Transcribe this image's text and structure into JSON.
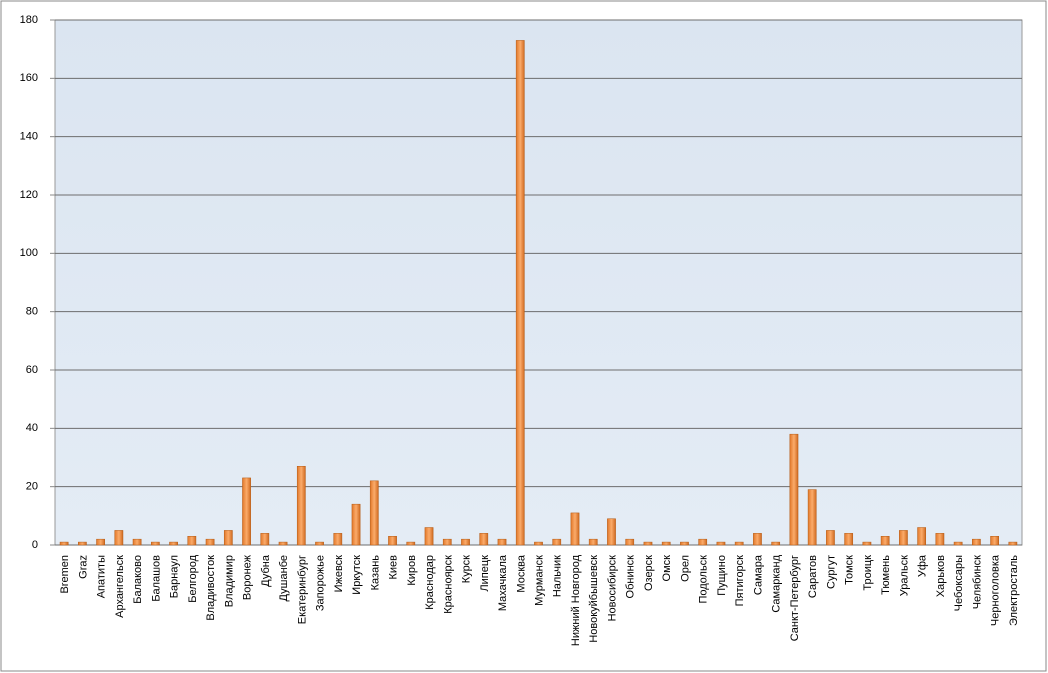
{
  "chart_data": {
    "type": "bar",
    "categories": [
      "Bremen",
      "Graz",
      "Апатиты",
      "Архангельск",
      "Балаково",
      "Балашов",
      "Барнаул",
      "Белгород",
      "Владивосток",
      "Владимир",
      "Воронеж",
      "Дубна",
      "Душанбе",
      "Екатеринбург",
      "Запорожье",
      "Ижевск",
      "Иркутск",
      "Казань",
      "Киев",
      "Киров",
      "Краснодар",
      "Красноярск",
      "Курск",
      "Липецк",
      "Махачкала",
      "Москва",
      "Мурманск",
      "Нальчик",
      "Нижний Новгород",
      "Новокуйбышевск",
      "Новосибирск",
      "Обнинск",
      "Озерск",
      "Омск",
      "Орел",
      "Подольск",
      "Пущино",
      "Пятигорск",
      "Самара",
      "Самарканд",
      "Санкт-Петербург",
      "Саратов",
      "Сургут",
      "Томск",
      "Троицк",
      "Тюмень",
      "Уральск",
      "Уфа",
      "Харьков",
      "Чебоксары",
      "Челябинск",
      "Черноголовка",
      "Электросталь"
    ],
    "values": [
      1,
      1,
      2,
      5,
      2,
      1,
      1,
      3,
      2,
      5,
      23,
      4,
      1,
      27,
      1,
      4,
      14,
      22,
      3,
      1,
      6,
      2,
      2,
      4,
      2,
      173,
      1,
      2,
      11,
      2,
      9,
      2,
      1,
      1,
      1,
      2,
      1,
      1,
      4,
      1,
      38,
      19,
      5,
      4,
      1,
      3,
      5,
      6,
      4,
      1,
      2,
      3,
      1
    ],
    "color": "#f79646",
    "ylim": [
      0,
      180
    ],
    "yticks": [
      0,
      20,
      40,
      60,
      80,
      100,
      120,
      140,
      160,
      180
    ],
    "grid": true
  }
}
